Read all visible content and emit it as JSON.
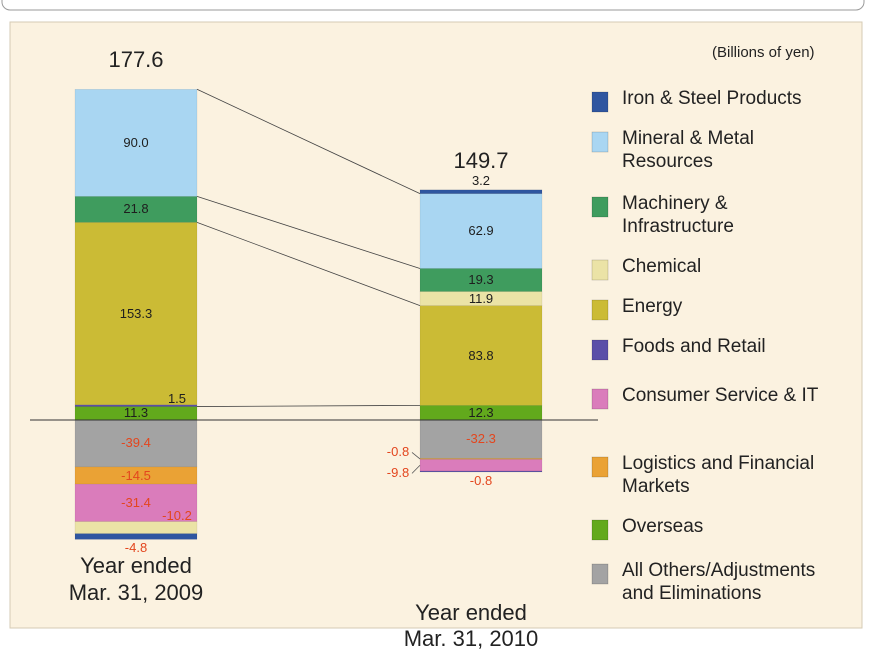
{
  "chart_data": {
    "type": "stacked_bar",
    "unit_label": "(Billions of yen)",
    "categories": [
      "Year ended Mar. 31, 2009",
      "Year ended Mar. 31, 2010"
    ],
    "totals": [
      177.6,
      149.7
    ],
    "series": [
      {
        "name": "Iron & Steel Products",
        "color": "#2f56a0",
        "values": [
          -4.8,
          3.2
        ]
      },
      {
        "name": "Mineral & Metal Resources",
        "color": "#a9d6f2",
        "values": [
          90.0,
          62.9
        ],
        "value_labels": [
          "90.0",
          "62.9"
        ]
      },
      {
        "name": "Machinery & Infrastructure",
        "color": "#3f9c5e",
        "values": [
          21.8,
          19.3
        ]
      },
      {
        "name": "Chemical",
        "color": "#ebe3a6",
        "values": [
          -10.2,
          11.9
        ]
      },
      {
        "name": "Energy",
        "color": "#cbbb35",
        "values": [
          153.3,
          83.8
        ]
      },
      {
        "name": "Foods and Retail",
        "color": "#5a4fa8",
        "values": [
          1.5,
          -0.8
        ]
      },
      {
        "name": "Consumer Service & IT",
        "color": "#da7cbb",
        "values": [
          -31.4,
          -9.8
        ]
      },
      {
        "name": "Logistics and Financial Markets",
        "color": "#eaa235",
        "values": [
          -14.5,
          -0.8
        ]
      },
      {
        "name": "Overseas",
        "color": "#62a91c",
        "values": [
          11.3,
          12.3
        ]
      },
      {
        "name": "All Others/Adjustments and Eliminations",
        "color": "#a3a3a3",
        "values": [
          -39.4,
          -32.3
        ]
      }
    ]
  }
}
